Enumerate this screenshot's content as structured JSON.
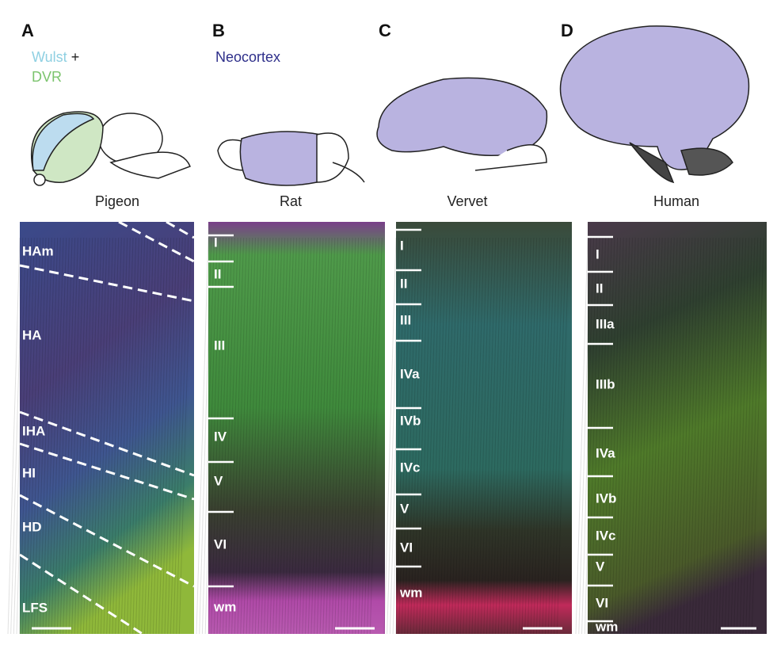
{
  "panels": [
    {
      "letter": "A",
      "legend": [
        {
          "text": "Wulst",
          "color": "#8fd0e2"
        },
        {
          "text": "+",
          "color": "#222222"
        },
        {
          "text": "DVR",
          "color": "#7cc46e"
        }
      ],
      "species": "Pigeon",
      "layers": [
        "HAm",
        "HA",
        "IHA",
        "HI",
        "HD",
        "LFS"
      ]
    },
    {
      "letter": "B",
      "legend": [
        {
          "text": "Neocortex",
          "color": "#2e2f8a"
        }
      ],
      "species": "Rat",
      "layers": [
        "I",
        "II",
        "III",
        "IV",
        "V",
        "VI",
        "wm"
      ]
    },
    {
      "letter": "C",
      "legend": [],
      "species": "Vervet",
      "layers": [
        "I",
        "II",
        "III",
        "IVa",
        "IVb",
        "IVc",
        "V",
        "VI",
        "wm"
      ]
    },
    {
      "letter": "D",
      "legend": [],
      "species": "Human",
      "layers": [
        "I",
        "II",
        "IIIa",
        "IIIb",
        "IVa",
        "IVb",
        "IVc",
        "V",
        "VI",
        "wm"
      ]
    }
  ]
}
